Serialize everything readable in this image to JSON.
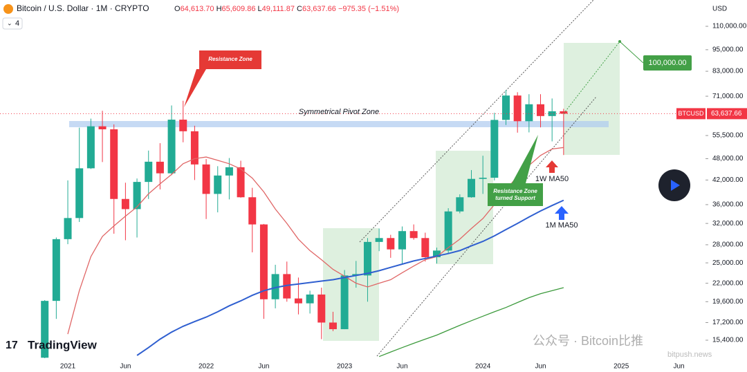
{
  "header": {
    "title": "Bitcoin / U.S. Dollar · 1M · CRYPTO",
    "ohlc": [
      {
        "label": "O",
        "value": "64,613.70"
      },
      {
        "label": "H",
        "value": "65,609.86"
      },
      {
        "label": "L",
        "value": "49,111.87"
      },
      {
        "label": "C",
        "value": "63,637.66"
      }
    ],
    "change": "−975.35 (−1.51%)",
    "indicator_count": "4",
    "currency": "USD"
  },
  "watermarks": {
    "brand": "TradingView",
    "wechat": "公众号 · Bitcoin比推",
    "site": "bitpush.news"
  },
  "chart_data": {
    "type": "candlestick",
    "log_scale": true,
    "up_color": "#22ab94",
    "down_color": "#f23645",
    "categories": [
      null,
      null,
      "2021",
      null,
      null,
      null,
      null,
      "Jun",
      null,
      null,
      null,
      null,
      null,
      null,
      "2022",
      null,
      null,
      null,
      null,
      "Jun",
      null,
      null,
      null,
      null,
      null,
      null,
      "2023",
      null,
      null,
      null,
      null,
      "Jun",
      null,
      null,
      null,
      null,
      null,
      null,
      "2024",
      null,
      null,
      null,
      null,
      "Jun",
      null,
      null,
      null,
      null,
      null,
      null,
      "2025",
      null,
      null,
      null,
      null,
      "Jun"
    ],
    "open": [
      13800,
      19700,
      29000,
      33100,
      45200,
      58800,
      57700,
      37300,
      35000,
      41500,
      47100,
      43800,
      61300,
      57000,
      46300,
      38500,
      43200,
      45500,
      37700,
      31800,
      19900,
      23300,
      20000,
      19400,
      20500,
      17200,
      16500,
      23100,
      23100,
      28500,
      29200,
      27200,
      30500,
      29200,
      25900,
      27000,
      34500,
      37700,
      42300,
      42600,
      61200,
      71300,
      60700,
      67500,
      62700,
      64613.7,
      null,
      null,
      null,
      null,
      null,
      null,
      null,
      null,
      null,
      null
    ],
    "high": [
      19800,
      29300,
      41900,
      58300,
      61700,
      64800,
      59500,
      41300,
      42400,
      50500,
      52900,
      67000,
      69000,
      59000,
      47900,
      45800,
      48200,
      47400,
      40000,
      31900,
      24700,
      25200,
      22800,
      21000,
      21400,
      18400,
      23900,
      25300,
      29200,
      31000,
      29800,
      31400,
      31800,
      30200,
      27500,
      35200,
      38400,
      44700,
      48900,
      64000,
      73800,
      72800,
      71900,
      71900,
      70000,
      65609.86,
      null,
      null,
      null,
      null,
      null,
      null,
      null,
      null,
      null,
      null
    ],
    "low": [
      13200,
      17600,
      28100,
      32300,
      45000,
      47000,
      30000,
      28800,
      29300,
      37300,
      39600,
      43300,
      53200,
      42000,
      32900,
      34300,
      37200,
      37600,
      26700,
      17600,
      18800,
      19600,
      18100,
      18200,
      15500,
      16300,
      16500,
      21400,
      19600,
      26900,
      25800,
      24800,
      28900,
      25200,
      24900,
      26500,
      34100,
      37600,
      38500,
      41900,
      59300,
      56500,
      56600,
      58400,
      53500,
      49111.87,
      null,
      null,
      null,
      null,
      null,
      null,
      null,
      null,
      null,
      null
    ],
    "close": [
      19700,
      29000,
      33100,
      45200,
      58800,
      57700,
      37300,
      35000,
      41500,
      47100,
      43800,
      61300,
      57000,
      46300,
      38500,
      43200,
      45500,
      37700,
      31800,
      19900,
      23300,
      20000,
      19400,
      20500,
      17200,
      16500,
      23100,
      23300,
      28500,
      29200,
      27200,
      30500,
      29200,
      25900,
      27000,
      34500,
      37700,
      42300,
      42600,
      61200,
      71300,
      60700,
      67500,
      62700,
      64600,
      63637.66,
      null,
      null,
      null,
      null,
      null,
      null,
      null,
      null,
      null,
      null
    ],
    "series": [
      {
        "name": "1W MA50",
        "color": "#e06666",
        "values": [
          null,
          null,
          16000,
          21000,
          26000,
          29500,
          31500,
          33500,
          35500,
          38500,
          41000,
          43500,
          46500,
          48000,
          48500,
          47500,
          46500,
          45000,
          42500,
          39000,
          35000,
          32000,
          29000,
          27000,
          25500,
          24000,
          23000,
          22000,
          21500,
          22000,
          22500,
          23500,
          24500,
          25500,
          26000,
          27500,
          29000,
          31000,
          33000,
          36000,
          39500,
          43000,
          46000,
          49000,
          51000,
          51500,
          null,
          null,
          null,
          null,
          null,
          null,
          null,
          null,
          null,
          null
        ]
      },
      {
        "name": "1M MA50",
        "color": "#2f5fd0",
        "values": [
          null,
          null,
          null,
          null,
          null,
          null,
          null,
          null,
          14000,
          14700,
          15500,
          16200,
          16800,
          17300,
          17800,
          18400,
          19100,
          19700,
          20400,
          21000,
          21400,
          21700,
          21900,
          22100,
          22300,
          22500,
          22800,
          23100,
          23400,
          23800,
          24300,
          24800,
          25300,
          25700,
          26100,
          26500,
          27000,
          27800,
          28600,
          29600,
          30800,
          32000,
          33300,
          34600,
          35800,
          37000,
          null,
          null,
          null,
          null,
          null,
          null,
          null,
          null,
          null,
          null
        ]
      },
      {
        "color": "#3c9a3c",
        "values": [
          null,
          null,
          null,
          null,
          null,
          null,
          null,
          null,
          null,
          null,
          null,
          null,
          null,
          null,
          null,
          null,
          null,
          null,
          null,
          null,
          null,
          null,
          null,
          null,
          null,
          null,
          null,
          null,
          null,
          13900,
          14300,
          14700,
          15100,
          15500,
          15900,
          16400,
          16900,
          17400,
          17900,
          18400,
          18900,
          19500,
          20100,
          20600,
          21000,
          21400,
          null,
          null,
          null,
          null,
          null,
          null,
          null,
          null,
          null,
          null
        ]
      }
    ],
    "ylim": [
      13760,
      129700
    ],
    "yticks": [
      {
        "value": 110000,
        "label": "110,000.00"
      },
      {
        "value": 95000,
        "label": "95,000.00"
      },
      {
        "value": 83000,
        "label": "83,000.00"
      },
      {
        "value": 71000,
        "label": "71,000.00"
      },
      {
        "value": 55500,
        "label": "55,500.00"
      },
      {
        "value": 48000,
        "label": "48,000.00"
      },
      {
        "value": 42000,
        "label": "42,000.00"
      },
      {
        "value": 36000,
        "label": "36,000.00"
      },
      {
        "value": 32000,
        "label": "32,000.00"
      },
      {
        "value": 28000,
        "label": "28,000.00"
      },
      {
        "value": 25000,
        "label": "25,000.00"
      },
      {
        "value": 22000,
        "label": "22,000.00"
      },
      {
        "value": 19600,
        "label": "19,600.00"
      },
      {
        "value": 17200,
        "label": "17,200.00"
      },
      {
        "value": 15400,
        "label": "15,400.00"
      }
    ],
    "last_price": {
      "symbol": "BTCUSD",
      "value": 63637.66,
      "label": "63,637.66"
    },
    "target": {
      "value": 100000,
      "label": "100,000.00"
    },
    "annotations": {
      "resistance": "Resistance Zone",
      "pivot": "Symmetrical Pivot Zone",
      "support": [
        "Resistance Zone",
        "turned Support"
      ]
    }
  }
}
